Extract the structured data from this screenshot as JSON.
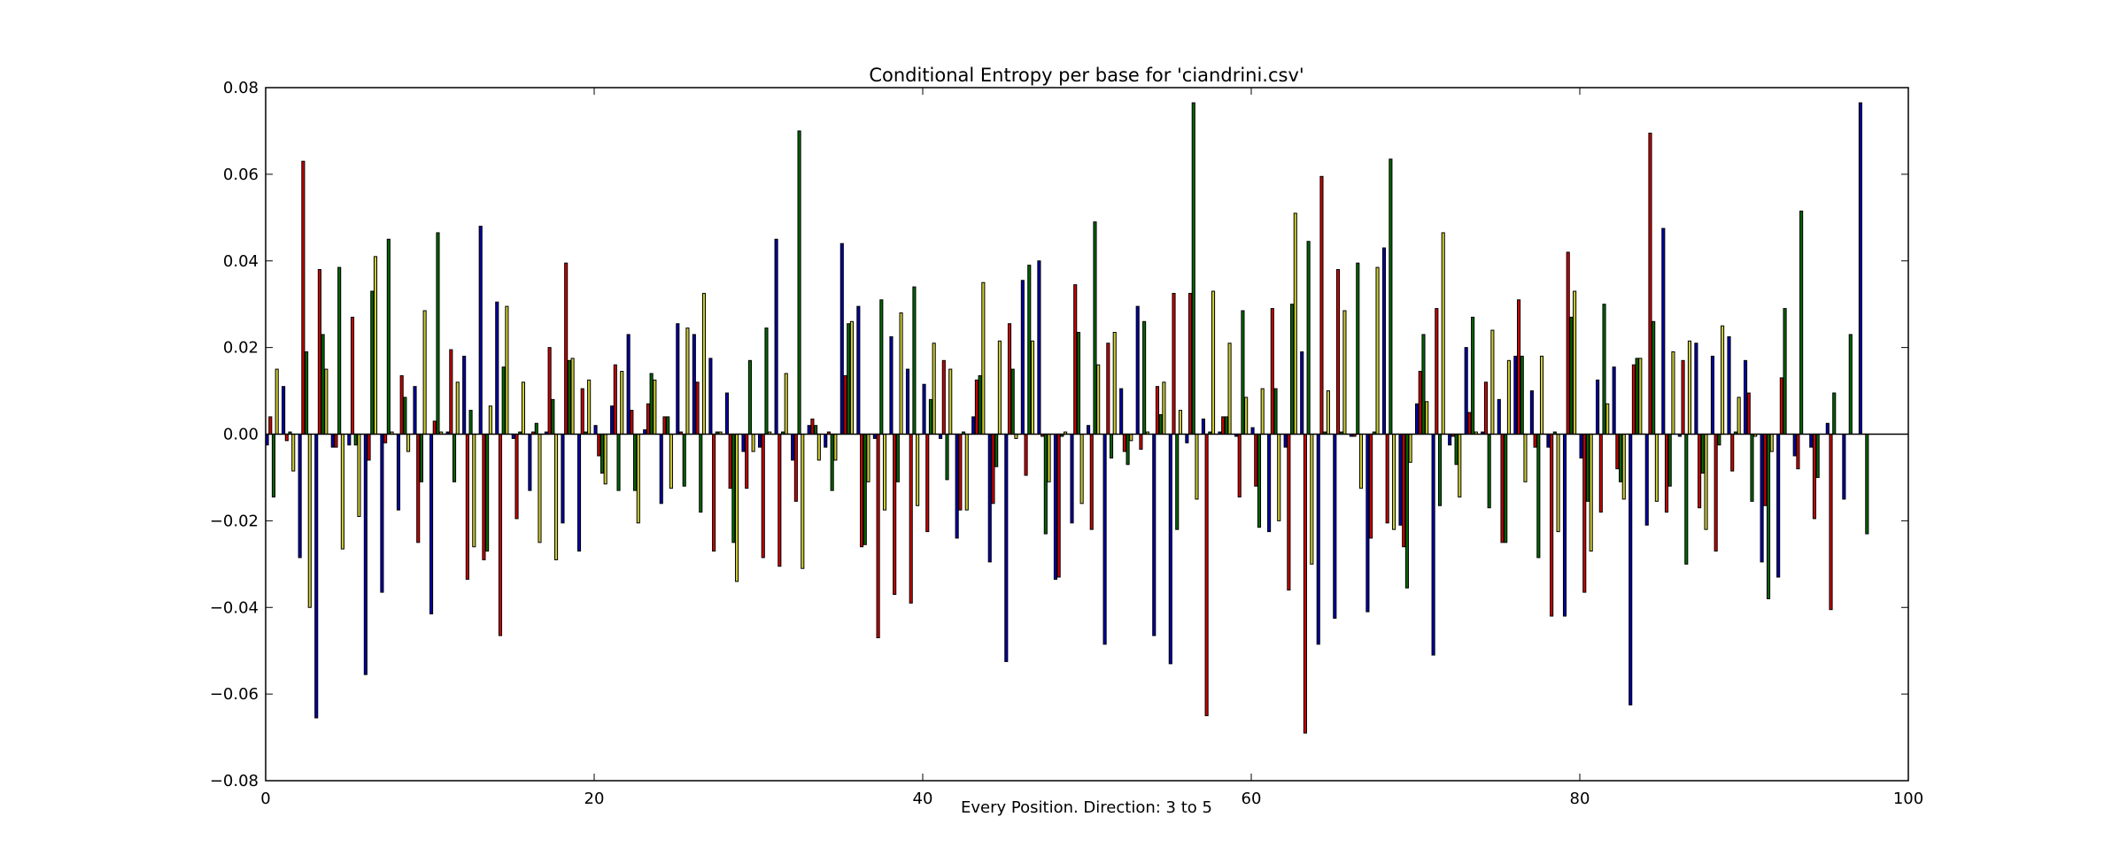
{
  "chart_data": {
    "type": "bar",
    "title": "Conditional Entropy per base for 'ciandrini.csv'",
    "xlabel": "Every Position. Direction: 3 to 5",
    "ylabel": "",
    "xlim": [
      0,
      100
    ],
    "ylim": [
      -0.08,
      0.08
    ],
    "x_ticks": [
      0,
      20,
      40,
      60,
      80,
      100
    ],
    "y_ticks": [
      -0.08,
      -0.06,
      -0.04,
      -0.02,
      0.0,
      0.02,
      0.04,
      0.06,
      0.08
    ],
    "y_tick_labels": [
      "−0.08",
      "−0.06",
      "−0.04",
      "−0.02",
      "0.00",
      "0.02",
      "0.04",
      "0.06",
      "0.08"
    ],
    "x_tick_labels": [
      "0",
      "20",
      "40",
      "60",
      "80",
      "100"
    ],
    "grid": false,
    "legend": "none",
    "bar_group_width": 0.8,
    "series": [
      {
        "color": "#0000aa",
        "values": [
          -0.0025,
          0.011,
          -0.0285,
          -0.0655,
          -0.003,
          -0.0025,
          -0.0555,
          -0.0365,
          -0.0175,
          0.011,
          -0.0415,
          0.0005,
          0.018,
          0.048,
          0.0305,
          -0.001,
          -0.013,
          0.0005,
          -0.0205,
          -0.027,
          0.002,
          0.0065,
          0.023,
          0.001,
          -0.016,
          0.0255,
          0.023,
          0.0175,
          0.0095,
          -0.004,
          -0.003,
          0.045,
          -0.006,
          0.002,
          -0.003,
          0.044,
          0.0295,
          -0.001,
          0.0225,
          0.015,
          0.0115,
          -0.001,
          -0.024,
          0.004,
          -0.0295,
          -0.0525,
          0.0355,
          0.04,
          -0.0335,
          -0.0205,
          0.002,
          -0.0485,
          0.0105,
          0.0295,
          -0.0465,
          -0.053,
          -0.002,
          0.0035,
          0.0005,
          -0.0005,
          0.0015,
          -0.0225,
          -0.003,
          0.019,
          -0.0485,
          -0.0425,
          -0.0005,
          -0.041,
          0.043,
          -0.021,
          0.007,
          -0.051,
          -0.0025,
          0.02,
          0.0005,
          0.008,
          0.018,
          0.01,
          -0.003,
          -0.042,
          -0.0055,
          0.0125,
          0.0155,
          -0.0625,
          -0.021,
          0.0475,
          -0.0005,
          0.021,
          0.018,
          0.0225,
          0.017,
          -0.0295,
          -0.033,
          -0.005,
          -0.003,
          0.0025,
          -0.015,
          0.0765
        ]
      },
      {
        "color": "#cc0000",
        "values": [
          0.004,
          -0.0015,
          0.063,
          0.038,
          -0.003,
          0.027,
          -0.006,
          -0.002,
          0.0135,
          -0.025,
          0.003,
          0.0195,
          -0.0335,
          -0.029,
          -0.0465,
          -0.0195,
          0.0005,
          0.02,
          0.0395,
          0.0105,
          -0.005,
          0.016,
          0.0055,
          0.007,
          0.004,
          0.0005,
          0.012,
          -0.027,
          -0.0125,
          -0.0125,
          -0.0285,
          -0.0305,
          -0.0155,
          0.0035,
          0.0005,
          0.0135,
          -0.026,
          -0.047,
          -0.037,
          -0.039,
          -0.0225,
          0.017,
          -0.0175,
          0.0125,
          -0.016,
          0.0255,
          -0.0095,
          -0.0005,
          -0.033,
          0.0345,
          -0.022,
          0.021,
          -0.004,
          -0.0035,
          0.011,
          0.0325,
          0.0325,
          -0.065,
          0.004,
          -0.0145,
          -0.012,
          0.029,
          -0.036,
          -0.069,
          0.0595,
          0.038,
          -0.0005,
          -0.024,
          -0.0205,
          -0.026,
          0.0145,
          0.029,
          -0.0005,
          0.005,
          0.012,
          -0.025,
          0.031,
          -0.003,
          -0.042,
          0.042,
          -0.0365,
          -0.018,
          -0.008,
          0.016,
          0.0695,
          -0.018,
          0.017,
          -0.017,
          -0.027,
          -0.0085,
          0.0095,
          -0.0165,
          0.013,
          -0.008,
          -0.0195,
          -0.0405
        ]
      },
      {
        "color": "#006600",
        "values": [
          -0.0145,
          0.0005,
          0.019,
          0.023,
          0.0385,
          -0.0025,
          0.033,
          0.045,
          0.0085,
          -0.011,
          0.0465,
          -0.011,
          0.0055,
          -0.027,
          0.0155,
          0.0005,
          0.0025,
          0.008,
          0.017,
          0.0005,
          -0.009,
          -0.013,
          -0.013,
          0.014,
          0.004,
          -0.012,
          -0.018,
          0.0005,
          -0.025,
          0.017,
          0.0245,
          0.0005,
          0.07,
          0.002,
          -0.013,
          0.0255,
          -0.0255,
          0.031,
          -0.011,
          0.034,
          0.008,
          -0.0105,
          0.0005,
          0.0135,
          -0.0075,
          0.015,
          0.039,
          -0.023,
          -0.0005,
          0.0235,
          0.049,
          -0.0055,
          -0.007,
          0.026,
          0.0045,
          -0.022,
          0.0765,
          0.0005,
          0.004,
          0.0285,
          -0.0215,
          0.0105,
          0.03,
          0.0445,
          0.0005,
          0.0005,
          0.0395,
          0.0005,
          0.0635,
          -0.0355,
          0.023,
          -0.0165,
          -0.007,
          0.027,
          -0.017,
          -0.025,
          0.018,
          -0.0285,
          0.0005,
          0.027,
          -0.0155,
          0.03,
          -0.011,
          0.0175,
          0.026,
          -0.012,
          -0.03,
          -0.009,
          -0.0025,
          0.0005,
          -0.0155,
          -0.038,
          0.029,
          0.0515,
          -0.01,
          0.0095,
          0.023,
          -0.023
        ]
      },
      {
        "color": "#cccc33",
        "values": [
          0.015,
          -0.0085,
          -0.04,
          0.015,
          -0.0265,
          -0.019,
          0.041,
          0.0005,
          -0.004,
          0.0285,
          0.0005,
          0.012,
          -0.026,
          0.0065,
          0.0295,
          0.012,
          -0.025,
          -0.029,
          0.0175,
          0.0125,
          -0.0115,
          0.0145,
          -0.0205,
          0.0125,
          -0.0125,
          0.0245,
          0.0325,
          0.0005,
          -0.034,
          -0.004,
          0.0005,
          0.014,
          -0.031,
          -0.006,
          -0.006,
          0.026,
          -0.011,
          -0.0175,
          0.028,
          -0.0165,
          0.021,
          0.015,
          -0.0175,
          0.035,
          0.0215,
          -0.001,
          0.0215,
          -0.011,
          0.0005,
          -0.016,
          0.016,
          0.0235,
          -0.0015,
          0.0005,
          0.012,
          0.0055,
          -0.015,
          0.033,
          0.021,
          0.0085,
          0.0105,
          -0.02,
          0.051,
          -0.03,
          0.01,
          0.0285,
          -0.0125,
          0.0385,
          -0.022,
          -0.0065,
          0.0075,
          0.0465,
          -0.0145,
          0.0005,
          0.024,
          0.017,
          -0.011,
          0.018,
          -0.0225,
          0.033,
          -0.027,
          0.007,
          -0.015,
          0.0175,
          -0.0155,
          0.019,
          0.0215,
          -0.022,
          0.025,
          0.0085,
          -0.0005,
          -0.004
        ]
      }
    ]
  }
}
